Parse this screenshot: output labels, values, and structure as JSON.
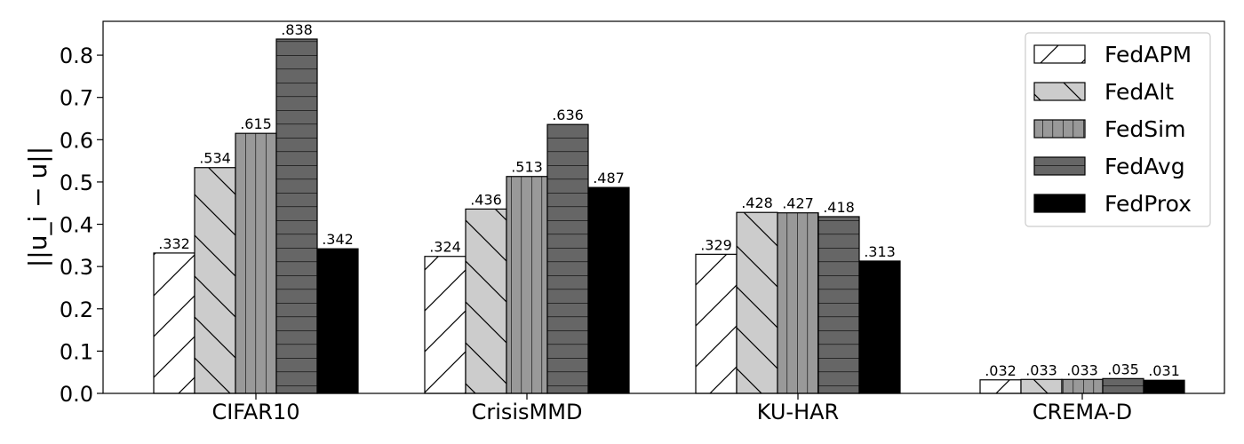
{
  "chart_data": {
    "type": "bar",
    "categories": [
      "CIFAR10",
      "CrisisMMD",
      "KU-HAR",
      "CREMA-D"
    ],
    "series": [
      {
        "name": "FedAPM",
        "values": [
          0.332,
          0.324,
          0.329,
          0.032
        ],
        "labels": [
          ".332",
          ".324",
          ".329",
          ".032"
        ],
        "color": "#ffffff",
        "hatch": "forward-diagonal"
      },
      {
        "name": "FedAlt",
        "values": [
          0.534,
          0.436,
          0.428,
          0.033
        ],
        "labels": [
          ".534",
          ".436",
          ".428",
          ".033"
        ],
        "color": "#cccccc",
        "hatch": "back-diagonal"
      },
      {
        "name": "FedSim",
        "values": [
          0.615,
          0.513,
          0.427,
          0.033
        ],
        "labels": [
          ".615",
          ".513",
          ".427",
          ".033"
        ],
        "color": "#999999",
        "hatch": "vertical"
      },
      {
        "name": "FedAvg",
        "values": [
          0.838,
          0.636,
          0.418,
          0.035
        ],
        "labels": [
          ".838",
          ".636",
          ".418",
          ".035"
        ],
        "color": "#666666",
        "hatch": "horizontal"
      },
      {
        "name": "FedProx",
        "values": [
          0.342,
          0.487,
          0.313,
          0.031
        ],
        "labels": [
          ".342",
          ".487",
          ".313",
          ".031"
        ],
        "color": "#000000",
        "hatch": "none"
      }
    ],
    "ylabel": "||u_i − u||",
    "ylim": [
      0,
      0.88
    ],
    "yticks": [
      "0.0",
      "0.1",
      "0.2",
      "0.3",
      "0.4",
      "0.5",
      "0.6",
      "0.7",
      "0.8"
    ],
    "grid": false,
    "legend_position": "top-right"
  }
}
